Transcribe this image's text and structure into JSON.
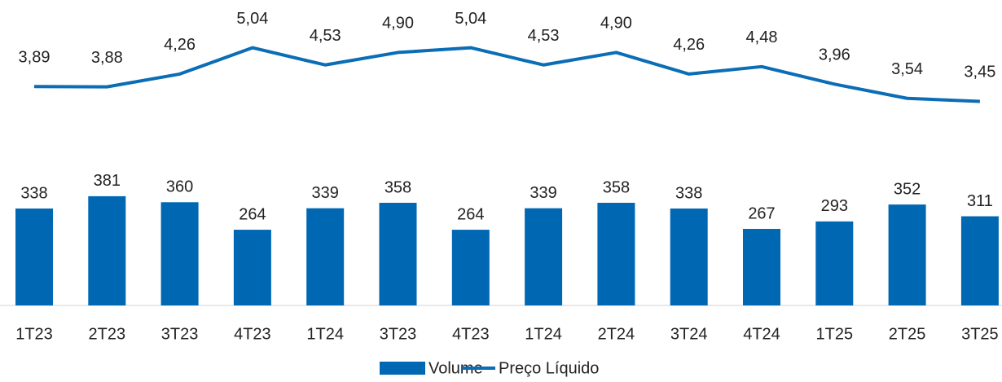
{
  "chart_data": {
    "type": "bar-line",
    "categories": [
      "1T23",
      "2T23",
      "3T23",
      "4T23",
      "1T24",
      "3T23",
      "4T23",
      "1T24",
      "2T24",
      "3T24",
      "4T24",
      "1T25",
      "2T25",
      "3T25"
    ],
    "series": [
      {
        "name": "Volume",
        "type": "bar",
        "color": "#0068b3",
        "values": [
          338,
          381,
          360,
          264,
          339,
          358,
          264,
          339,
          358,
          338,
          267,
          293,
          352,
          311
        ]
      },
      {
        "name": "Preço Líquido",
        "type": "line",
        "axis": "y2",
        "color": "#0a6db5",
        "values": [
          3.89,
          3.88,
          4.26,
          5.04,
          4.53,
          4.9,
          5.04,
          4.53,
          4.9,
          4.26,
          4.48,
          3.96,
          3.54,
          3.45
        ],
        "value_labels": [
          "3,89",
          "3,88",
          "4,26",
          "5,04",
          "4,53",
          "4,90",
          "5,04",
          "4,53",
          "4,90",
          "4,26",
          "4,48",
          "3,96",
          "3,54",
          "3,45"
        ]
      }
    ],
    "ylim": [
      0,
      1000
    ],
    "y2lim": [
      -2.6,
      5.9
    ],
    "legend": "bottom"
  }
}
